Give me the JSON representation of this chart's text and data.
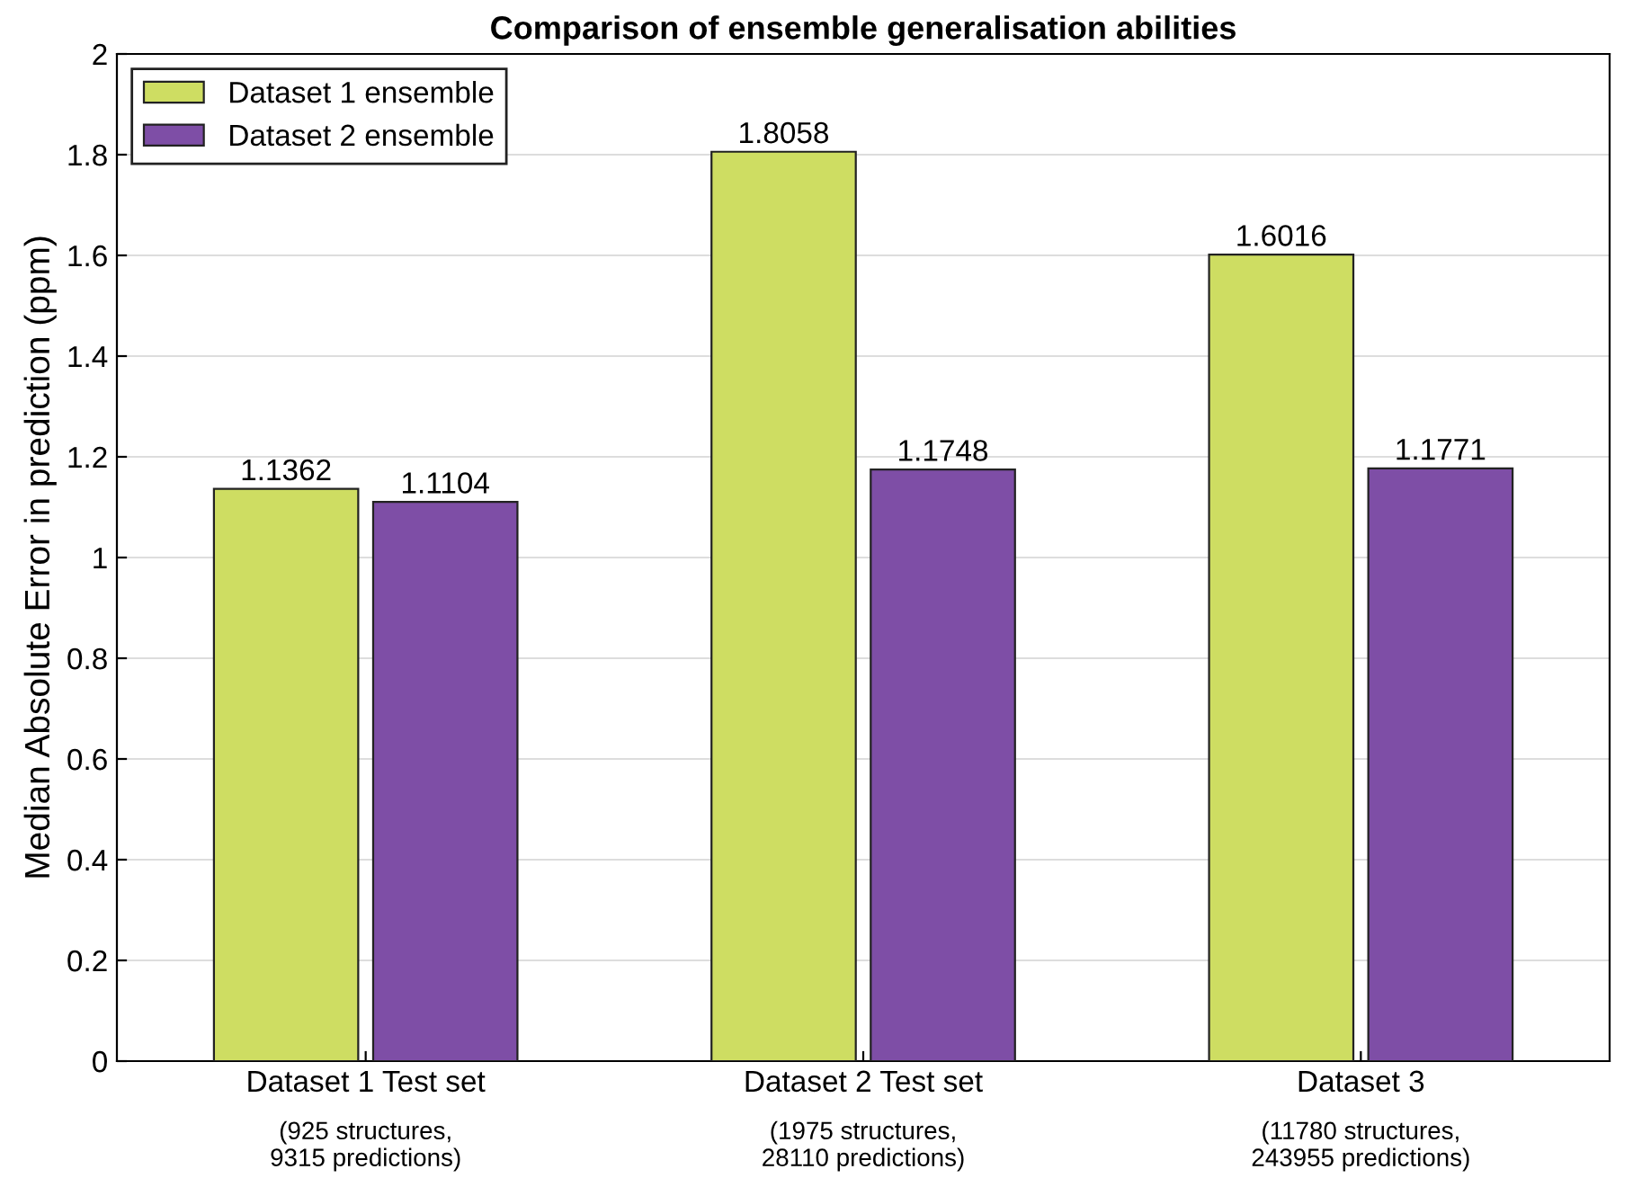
{
  "chart_data": {
    "type": "bar",
    "title": "Comparison of ensemble generalisation abilities",
    "ylabel": "Median Absolute Error in prediction (ppm)",
    "categories": [
      "Dataset 1 Test set\n(925 structures,\n9315 predictions)",
      "Dataset 2 Test set\n(1975 structures,\n28110 predictions)",
      "Dataset 3\n(11780 structures,\n243955 predictions)"
    ],
    "series": [
      {
        "name": "Dataset 1 ensemble",
        "color": "#cedd62",
        "values": [
          1.1362,
          1.8058,
          1.6016
        ]
      },
      {
        "name": "Dataset 2 ensemble",
        "color": "#7e4ea6",
        "values": [
          1.1104,
          1.1748,
          1.1771
        ]
      }
    ],
    "ylim": [
      0,
      2
    ],
    "yticks": [
      0,
      0.2,
      0.4,
      0.6,
      0.8,
      1,
      1.2,
      1.4,
      1.6,
      1.8,
      2
    ],
    "data_labels": true,
    "grid": "y",
    "legend": "top left"
  }
}
